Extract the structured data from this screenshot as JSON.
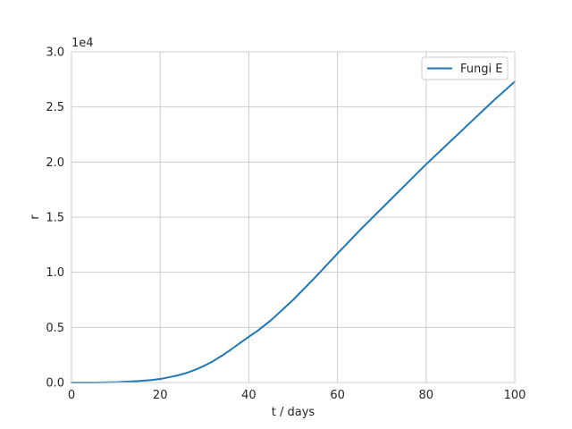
{
  "chart_data": {
    "type": "line",
    "title": "",
    "xlabel": "t / days",
    "ylabel": "r",
    "xlim": [
      0,
      100
    ],
    "ylim": [
      0,
      30000
    ],
    "xticks": [
      0,
      20,
      40,
      60,
      80,
      100
    ],
    "yticks": [
      0,
      5000,
      10000,
      15000,
      20000,
      25000,
      30000
    ],
    "ytick_labels": [
      "0.0",
      "0.5",
      "1.0",
      "1.5",
      "2.0",
      "2.5",
      "3.0"
    ],
    "y_offset_label": "1e4",
    "grid": true,
    "legend_position": "top-right",
    "series": [
      {
        "name": "Fungi E",
        "color": "#1f77b4",
        "x": [
          0,
          5,
          10,
          15,
          18,
          20,
          22,
          24,
          26,
          28,
          30,
          32,
          34,
          36,
          38,
          40,
          42,
          45,
          50,
          55,
          60,
          65,
          70,
          75,
          80,
          85,
          90,
          95,
          100
        ],
        "y": [
          0,
          0,
          30,
          130,
          220,
          320,
          480,
          650,
          880,
          1170,
          1530,
          1950,
          2450,
          3000,
          3580,
          4150,
          4700,
          5650,
          7500,
          9550,
          11700,
          13800,
          15800,
          17800,
          19800,
          21700,
          23600,
          25500,
          27300
        ]
      }
    ]
  }
}
